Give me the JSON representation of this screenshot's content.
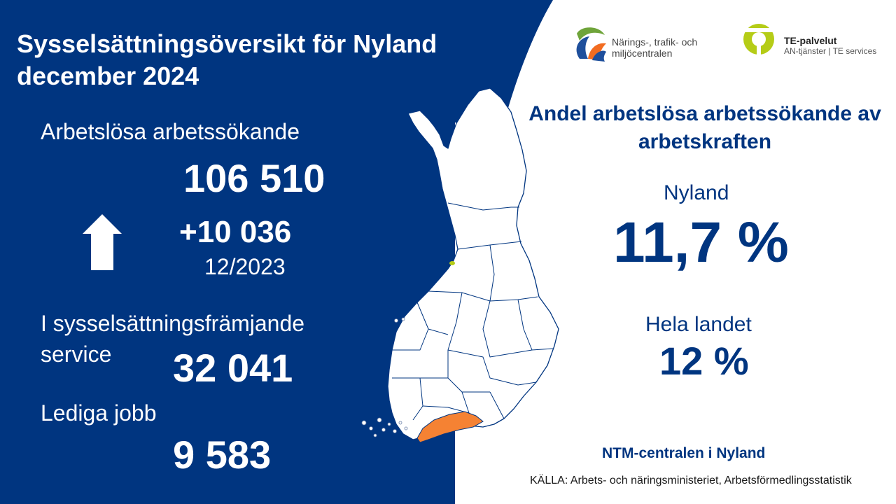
{
  "title": "Sysselsättningsöversikt för Nyland december 2024",
  "unemployed": {
    "label": "Arbetslösa arbetssökande",
    "value": "106 510"
  },
  "change": {
    "value": "+10 036",
    "reference": "12/2023",
    "direction_icon": "arrow-up-icon"
  },
  "services": {
    "label": "I sysselsättningsfrämjande service",
    "value": "32 041"
  },
  "vacancies": {
    "label": "Lediga jobb",
    "value": "9 583"
  },
  "share": {
    "heading": "Andel arbetslösa arbetssökande av arbetskraften",
    "region_label": "Nyland",
    "region_value": "11,7 %",
    "country_label": "Hela landet",
    "country_value": "12 %"
  },
  "organization": "NTM-centralen i Nyland",
  "source": "KÄLLA: Arbets- och näringsministeriet, Arbetsförmedlingsstatistik",
  "logos": {
    "ntm_text": "Närings-, trafik- och miljöcentralen",
    "te_title": "TE-palvelut",
    "te_subtitle": "AN-tjänster | TE services"
  },
  "colors": {
    "navy": "#003580",
    "highlight_region": "#F58233",
    "white": "#FFFFFF",
    "te_green": "#B5CC17"
  }
}
